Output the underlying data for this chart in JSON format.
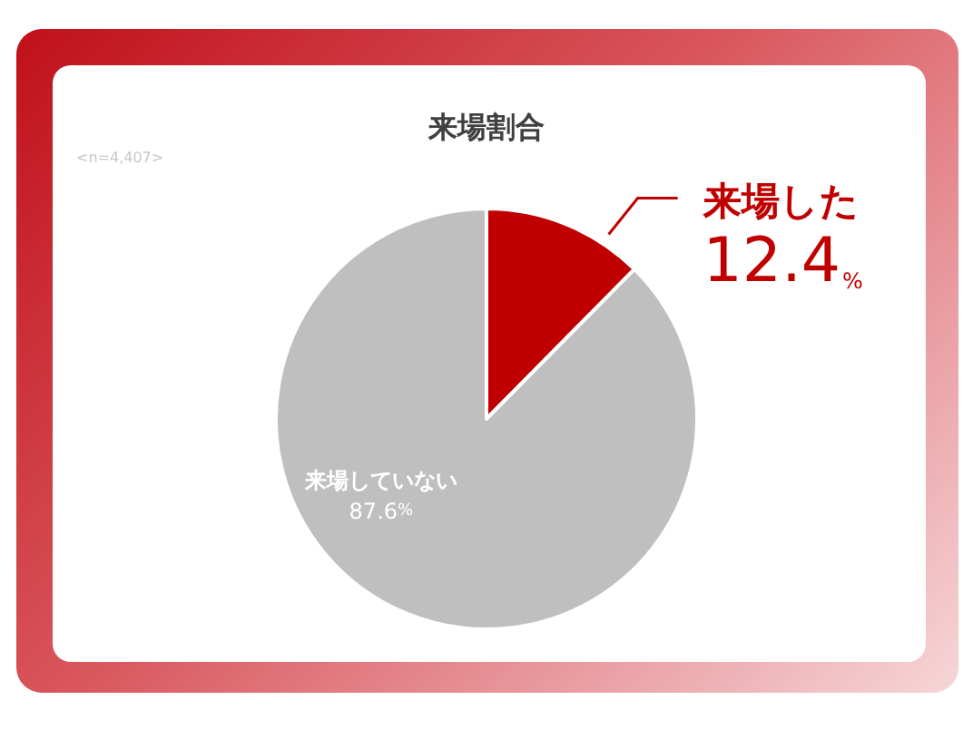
{
  "chart_data": {
    "type": "pie",
    "title": "来場割合",
    "annotations": [
      "<n=4,407>"
    ],
    "categories": [
      "来場した",
      "来場していない"
    ],
    "values": [
      12.4,
      87.6
    ],
    "colors": [
      "#c00000",
      "#bfbfbf"
    ],
    "value_labels": [
      "12.4%",
      "87.6%"
    ]
  }
}
